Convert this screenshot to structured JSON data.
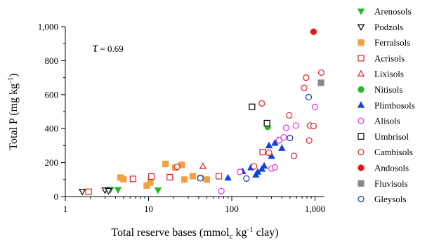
{
  "chart_data": {
    "type": "scatter",
    "title": "",
    "xlabel": "Total reserve bases (mmol",
    "xlabel_sub": "c",
    "xlabel_rest": " kg",
    "xlabel_sup": "-1",
    "xlabel_end": " clay)",
    "ylabel": "Total P (mg kg",
    "ylabel_sup": "-1",
    "ylabel_end": ")",
    "x_scale": "log",
    "xlim": [
      1,
      1300
    ],
    "ylim": [
      0,
      1000
    ],
    "x_ticks": [
      1,
      10,
      100,
      1000
    ],
    "x_tick_labels": [
      "1",
      "10",
      "100",
      "1,000"
    ],
    "y_ticks": [
      0,
      200,
      400,
      600,
      800,
      1000
    ],
    "y_tick_labels": [
      "0",
      "200",
      "400",
      "600",
      "800",
      "1,000"
    ],
    "grid": false,
    "legend_position": "right",
    "annotation_symbol": "τ",
    "annotation_value": " = 0.69",
    "series": [
      {
        "name": "Arenosols",
        "marker": "triangle-down",
        "filled": true,
        "color": "#22bb22",
        "points": [
          [
            3.5,
            42
          ],
          [
            4.3,
            40
          ],
          [
            13,
            38
          ]
        ]
      },
      {
        "name": "Podzols",
        "marker": "triangle-down",
        "filled": false,
        "color": "#000000",
        "points": [
          [
            1.6,
            30
          ],
          [
            3.0,
            38
          ],
          [
            3.3,
            34
          ]
        ]
      },
      {
        "name": "Ferralsols",
        "marker": "square",
        "filled": true,
        "color": "#f5a040",
        "points": [
          [
            4.6,
            112
          ],
          [
            5.0,
            102
          ],
          [
            9.5,
            65
          ],
          [
            10.5,
            82
          ],
          [
            16,
            192
          ],
          [
            21,
            170
          ],
          [
            25,
            186
          ],
          [
            27,
            100
          ],
          [
            34,
            120
          ],
          [
            42,
            110
          ],
          [
            50,
            100
          ]
        ]
      },
      {
        "name": "Acrisols",
        "marker": "square",
        "filled": false,
        "color": "#dd2222",
        "points": [
          [
            1.9,
            28
          ],
          [
            6.5,
            104
          ],
          [
            10.8,
            118
          ],
          [
            18,
            114
          ],
          [
            70,
            120
          ],
          [
            235,
            262
          ]
        ]
      },
      {
        "name": "Lixisols",
        "marker": "triangle-up",
        "filled": false,
        "color": "#dd2222",
        "points": [
          [
            45,
            178
          ]
        ]
      },
      {
        "name": "Nitisols",
        "marker": "circle",
        "filled": true,
        "color": "#22bb22",
        "points": [
          [
            270,
            410
          ]
        ]
      },
      {
        "name": "Plinthosols",
        "marker": "triangle-up",
        "filled": true,
        "color": "#1144dd",
        "points": [
          [
            90,
            110
          ],
          [
            135,
            148
          ],
          [
            170,
            170
          ],
          [
            195,
            128
          ],
          [
            205,
            145
          ],
          [
            230,
            162
          ],
          [
            245,
            180
          ],
          [
            280,
            300
          ],
          [
            300,
            238
          ],
          [
            330,
            315
          ],
          [
            360,
            332
          ],
          [
            400,
            285
          ]
        ]
      },
      {
        "name": "Alisols",
        "marker": "circle",
        "filled": false,
        "color": "#dd33dd",
        "points": [
          [
            75,
            32
          ],
          [
            125,
            145
          ],
          [
            300,
            165
          ],
          [
            330,
            172
          ],
          [
            370,
            330
          ],
          [
            420,
            348
          ],
          [
            450,
            405
          ],
          [
            590,
            418
          ],
          [
            1000,
            528
          ]
        ]
      },
      {
        "name": "Umbrisol",
        "marker": "square",
        "filled": false,
        "color": "#000000",
        "points": [
          [
            175,
            528
          ],
          [
            265,
            432
          ]
        ]
      },
      {
        "name": "Cambisols",
        "marker": "circle",
        "filled": false,
        "color": "#dd2222",
        "points": [
          [
            22,
            175
          ],
          [
            185,
            178
          ],
          [
            230,
            548
          ],
          [
            280,
            258
          ],
          [
            490,
            478
          ],
          [
            560,
            240
          ],
          [
            740,
            640
          ],
          [
            780,
            700
          ],
          [
            850,
            330
          ],
          [
            870,
            418
          ],
          [
            960,
            415
          ],
          [
            1190,
            730
          ]
        ]
      },
      {
        "name": "Andosols",
        "marker": "circle",
        "filled": true,
        "color": "#ee1111",
        "points": [
          [
            960,
            970
          ]
        ]
      },
      {
        "name": "Fluvisols",
        "marker": "square",
        "filled": true,
        "color": "#888888",
        "points": [
          [
            1180,
            670
          ]
        ]
      },
      {
        "name": "Gleysols",
        "marker": "circle",
        "filled": false,
        "color": "#1133aa",
        "points": [
          [
            42,
            108
          ],
          [
            150,
            106
          ],
          [
            500,
            345
          ],
          [
            840,
            585
          ]
        ]
      }
    ]
  }
}
